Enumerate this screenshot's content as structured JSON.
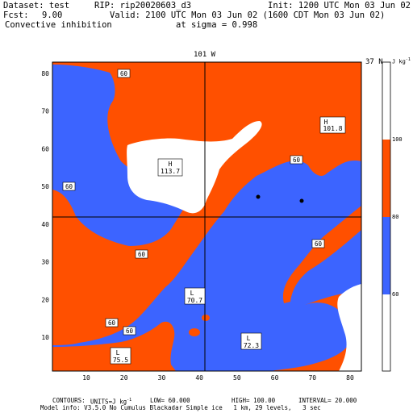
{
  "header": {
    "dataset": "Dataset: test",
    "rip": "RIP: rip20020603_d3",
    "init": "Init: 1200 UTC Mon 03 Jun 02",
    "fcst_label": "Fcst:",
    "fcst_value": "9.00",
    "valid": "Valid: 2100 UTC Mon 03 Jun 02 (1600 CDT Mon 03 Jun 02)",
    "field": "Convective inhibition",
    "level": "at sigma = 0.998"
  },
  "map": {
    "meridian_label": "101 W",
    "parallel_label": "37 N",
    "x_ticks": [
      "10",
      "20",
      "30",
      "40",
      "50",
      "60",
      "70",
      "80"
    ],
    "y_ticks": [
      "10",
      "20",
      "30",
      "40",
      "50",
      "60",
      "70",
      "80"
    ],
    "colors": {
      "high": "#ff5000",
      "low": "#3c64ff",
      "white": "#ffffff"
    },
    "contour_labels": [
      "60",
      "60",
      "60",
      "60",
      "60",
      "60",
      "60"
    ],
    "extrema": [
      {
        "letter": "H",
        "value": "113.7"
      },
      {
        "letter": "H",
        "value": "101.8"
      },
      {
        "letter": "L",
        "value": "70.7"
      },
      {
        "letter": "L",
        "value": "72.3"
      },
      {
        "letter": "L",
        "value": "75.5"
      }
    ]
  },
  "colorbar": {
    "unit": "J kg",
    "unit_exp": "-1",
    "labels": [
      "100",
      "80",
      "60"
    ]
  },
  "footer": {
    "contours_label": "CONTOURS:",
    "units": "UNITS=J kg",
    "units_exp": "-1",
    "low": "LOW= 60.000",
    "high": "HIGH= 100.00",
    "interval": "INTERVAL= 20.000",
    "model_info": "Model info: V3.5.0 No Cumulus Blackadar Simple ice   1 km, 29 levels,   3 sec"
  }
}
